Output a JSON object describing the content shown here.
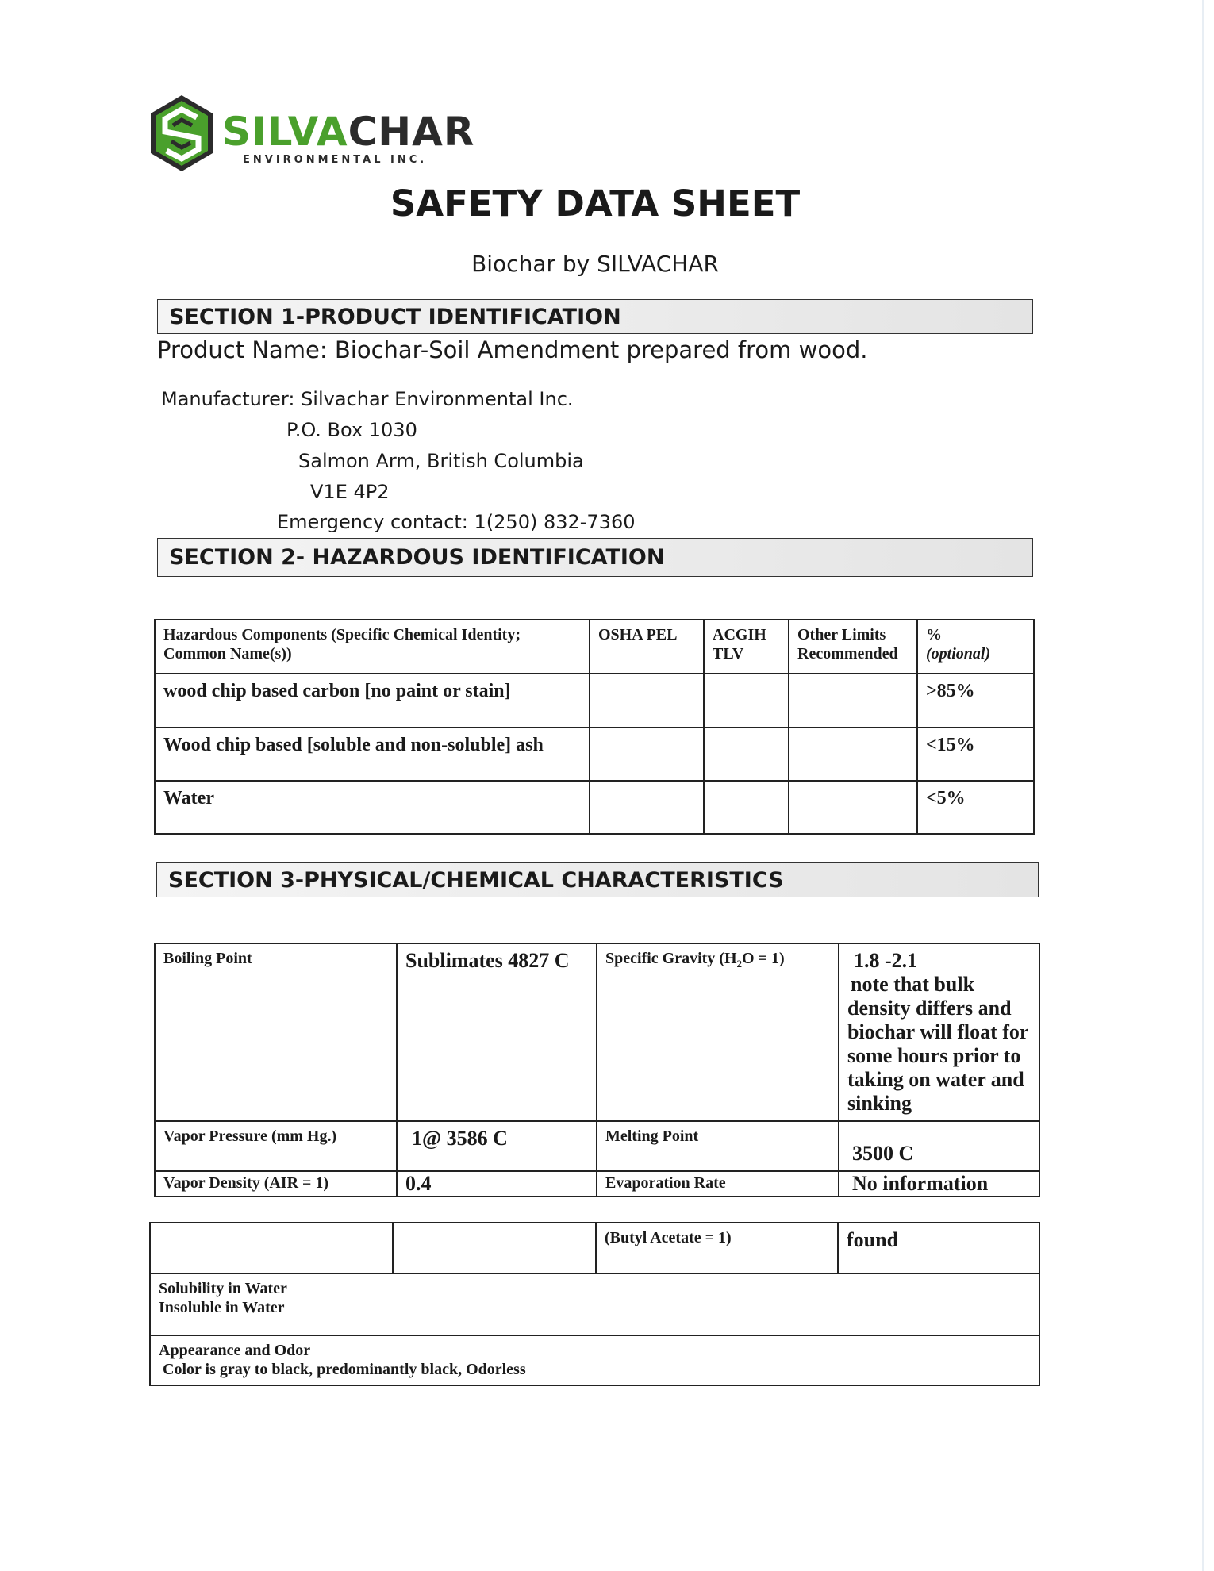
{
  "logo": {
    "brand_green": "SILVA",
    "brand_dark": "CHAR",
    "tagline": "ENVIRONMENTAL INC.",
    "colors": {
      "green": "#4aa02c",
      "dark": "#2b2b2b"
    }
  },
  "title": "SAFETY DATA SHEET",
  "subtitle": "Biochar by SILVACHAR",
  "section1": {
    "heading": "SECTION 1-PRODUCT IDENTIFICATION",
    "product_name": "Product Name:  Biochar-Soil Amendment prepared from wood.",
    "manufacturer": "Manufacturer: Silvachar Environmental Inc.",
    "po_box": "P.O. Box 1030",
    "city": "Salmon Arm, British Columbia",
    "postal": "V1E 4P2",
    "emergency": "Emergency contact: 1(250) 832-7360"
  },
  "section2": {
    "heading": "SECTION 2- HAZARDOUS IDENTIFICATION",
    "headers": [
      "Hazardous Components (Specific Chemical Identity; Common Name(s))",
      "OSHA PEL",
      "ACGIH TLV",
      "Other Limits Recommended",
      "%",
      "(optional)"
    ],
    "rows": [
      {
        "component": "wood chip based carbon [no paint or stain]",
        "osha": "",
        "acgih": "",
        "other": "",
        "percent": ">85%"
      },
      {
        "component": "Wood chip based [soluble and non-soluble] ash",
        "osha": "",
        "acgih": "",
        "other": "",
        "percent": "<15%"
      },
      {
        "component": "Water",
        "osha": "",
        "acgih": "",
        "other": "",
        "percent": "<5%"
      }
    ]
  },
  "section3": {
    "heading": "SECTION 3-PHYSICAL/CHEMICAL CHARACTERISTICS",
    "boiling_label": "Boiling Point",
    "boiling_value": "Sublimates 4827 C",
    "sg_label": "Specific Gravity (H",
    "sg_sub": "2",
    "sg_label_end": "O = 1)",
    "sg_value": "1.8 -2.1",
    "sg_note1": "note that bulk",
    "sg_note2": "density differs and biochar will float for some hours prior to taking on water and sinking",
    "vp_label": "Vapor Pressure (mm Hg.)",
    "vp_value": "1@ 3586 C",
    "mp_label": "Melting Point",
    "mp_value": "3500 C",
    "vd_label": "Vapor Density (AIR = 1)",
    "vd_value": "0.4",
    "er_label": "Evaporation Rate",
    "er_value": "No information",
    "butyl_label": "(Butyl Acetate = 1)",
    "butyl_value": "found",
    "solubility_label": "Solubility in Water",
    "solubility_value": "Insoluble in Water",
    "appearance_label": "Appearance and Odor",
    "appearance_value": "Color is gray to black, predominantly black, Odorless"
  }
}
